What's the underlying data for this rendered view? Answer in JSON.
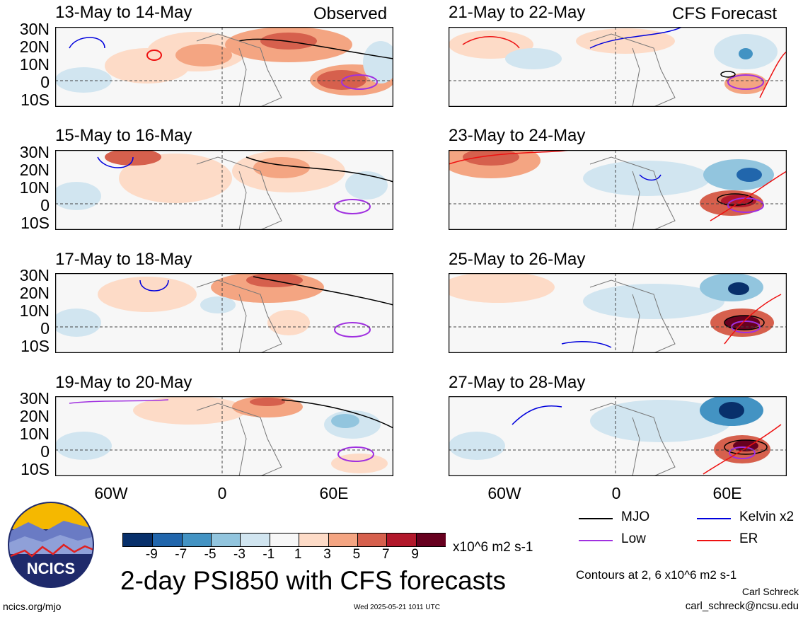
{
  "columns": {
    "left_header": "Observed",
    "right_header": "CFS Forecast"
  },
  "panels_left": [
    {
      "title": "13-May to 14-May"
    },
    {
      "title": "15-May to 16-May"
    },
    {
      "title": "17-May to 18-May"
    },
    {
      "title": "19-May to 20-May"
    }
  ],
  "panels_right": [
    {
      "title": "21-May to 22-May"
    },
    {
      "title": "23-May to 24-May"
    },
    {
      "title": "25-May to 26-May"
    },
    {
      "title": "27-May to 28-May"
    }
  ],
  "y_axis_labels": [
    "30N",
    "20N",
    "10N",
    "0",
    "10S"
  ],
  "x_axis_labels": [
    "60W",
    "0",
    "60E"
  ],
  "colorbar": {
    "ticks": [
      "-9",
      "-7",
      "-5",
      "-3",
      "-1",
      "1",
      "3",
      "5",
      "7",
      "9"
    ],
    "colors": [
      "#08306b",
      "#2166ac",
      "#4393c3",
      "#92c5de",
      "#d1e5f0",
      "#f7f7f7",
      "#fddbc7",
      "#f4a582",
      "#d6604d",
      "#b2182b",
      "#67001f"
    ],
    "units": "x10^6 m2 s-1"
  },
  "legend": {
    "mjo": {
      "label": "MJO",
      "color": "#000000"
    },
    "kelvin": {
      "label": "Kelvin x2",
      "color": "#0000dd"
    },
    "low": {
      "label": "Low",
      "color": "#a030e0"
    },
    "er": {
      "label": "ER",
      "color": "#ee1111"
    }
  },
  "contours_note": "Contours at 2, 6 x10^6 m2 s-1",
  "main_title": "2-day PSI850 with CFS forecasts",
  "logo_text": "NCICS",
  "footer": {
    "url": "ncics.org/mjo",
    "timestamp": "Wed 2025-05-21 1011 UTC",
    "author": "Carl Schreck",
    "email": "carl_schreck@ncsu.edu"
  }
}
